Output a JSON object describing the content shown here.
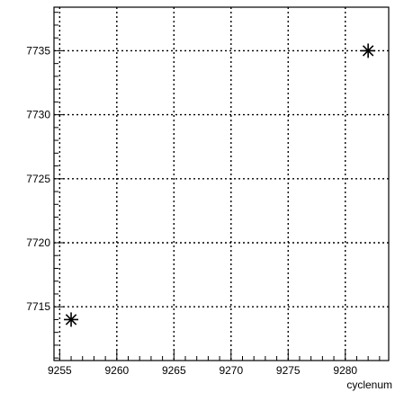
{
  "chart_data": {
    "type": "scatter",
    "title": "",
    "xlabel": "cyclenum",
    "ylabel": "",
    "xlim": [
      9254.5,
      9283.8
    ],
    "ylim": [
      7710.8,
      7738.4
    ],
    "xticks": [
      9255,
      9260,
      9265,
      9270,
      9275,
      9280
    ],
    "yticks": [
      7715,
      7720,
      7725,
      7730,
      7735
    ],
    "grid": true,
    "grid_style": "dotted",
    "marker": "asterisk",
    "marker_color": "#000000",
    "axis_color": "#000000",
    "grid_color": "#000000",
    "series": [
      {
        "points": [
          {
            "x": 9256,
            "y": 7714
          },
          {
            "x": 9282,
            "y": 7735
          }
        ]
      }
    ]
  }
}
